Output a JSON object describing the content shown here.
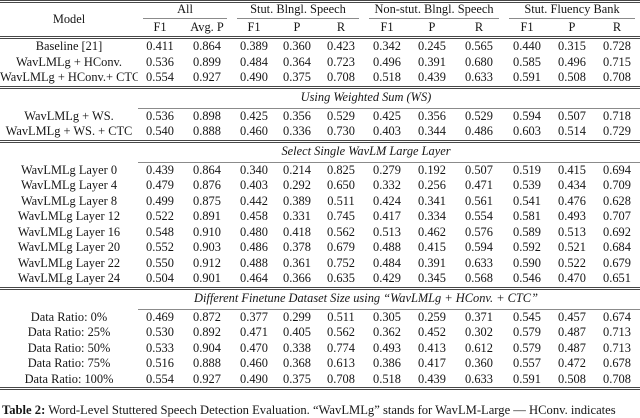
{
  "table": {
    "header": {
      "model": "Model",
      "groups": [
        {
          "label": "All",
          "cols": [
            "F1",
            "Avg. P"
          ]
        },
        {
          "label": "Stut. Blngl. Speech",
          "cols": [
            "F1",
            "P",
            "R"
          ]
        },
        {
          "label": "Non-stut. Blngl. Speech",
          "cols": [
            "F1",
            "P",
            "R"
          ]
        },
        {
          "label": "Stut. Fluency Bank",
          "cols": [
            "F1",
            "P",
            "R"
          ]
        }
      ]
    },
    "sections": [
      {
        "title": "",
        "rows": [
          {
            "model": "Baseline [21]",
            "values": [
              "0.411",
              "0.864",
              "0.389",
              "0.360",
              "0.423",
              "0.342",
              "0.245",
              "0.565",
              "0.440",
              "0.315",
              "0.728"
            ],
            "bold": []
          },
          {
            "model": "WavLMLg + HConv.",
            "values": [
              "0.536",
              "0.899",
              "0.484",
              "0.364",
              "0.723",
              "0.496",
              "0.391",
              "0.680",
              "0.585",
              "0.496",
              "0.715"
            ],
            "bold": []
          },
          {
            "model": "WavLMLg + HConv.+ CTC",
            "values": [
              "0.554",
              "0.927",
              "0.490",
              "0.375",
              "0.708",
              "0.518",
              "0.439",
              "0.633",
              "0.591",
              "0.508",
              "0.708"
            ],
            "bold": [
              0,
              1,
              2,
              5
            ]
          }
        ]
      },
      {
        "title": "Using Weighted Sum (WS)",
        "rows": [
          {
            "model": "WavLMLg + WS.",
            "values": [
              "0.536",
              "0.898",
              "0.425",
              "0.356",
              "0.529",
              "0.425",
              "0.356",
              "0.529",
              "0.594",
              "0.507",
              "0.718"
            ],
            "bold": []
          },
          {
            "model": "WavLMLg + WS. + CTC",
            "values": [
              "0.540",
              "0.888",
              "0.460",
              "0.336",
              "0.730",
              "0.403",
              "0.344",
              "0.486",
              "0.603",
              "0.514",
              "0.729"
            ],
            "bold": [
              8
            ]
          }
        ]
      },
      {
        "title": "Select Single WavLM Large Layer",
        "rows": [
          {
            "model": "WavLMLg Layer 0",
            "values": [
              "0.439",
              "0.864",
              "0.340",
              "0.214",
              "0.825",
              "0.279",
              "0.192",
              "0.507",
              "0.519",
              "0.415",
              "0.694"
            ],
            "bold": []
          },
          {
            "model": "WavLMLg Layer 4",
            "values": [
              "0.479",
              "0.876",
              "0.403",
              "0.292",
              "0.650",
              "0.332",
              "0.256",
              "0.471",
              "0.539",
              "0.434",
              "0.709"
            ],
            "bold": []
          },
          {
            "model": "WavLMLg Layer 8",
            "values": [
              "0.499",
              "0.875",
              "0.442",
              "0.389",
              "0.511",
              "0.424",
              "0.341",
              "0.561",
              "0.541",
              "0.476",
              "0.628"
            ],
            "bold": []
          },
          {
            "model": "WavLMLg Layer 12",
            "values": [
              "0.522",
              "0.891",
              "0.458",
              "0.331",
              "0.745",
              "0.417",
              "0.334",
              "0.554",
              "0.581",
              "0.493",
              "0.707"
            ],
            "bold": []
          },
          {
            "model": "WavLMLg Layer 16",
            "values": [
              "0.548",
              "0.910",
              "0.480",
              "0.418",
              "0.562",
              "0.513",
              "0.462",
              "0.576",
              "0.589",
              "0.513",
              "0.692"
            ],
            "bold": []
          },
          {
            "model": "WavLMLg Layer 20",
            "values": [
              "0.552",
              "0.903",
              "0.486",
              "0.378",
              "0.679",
              "0.488",
              "0.415",
              "0.594",
              "0.592",
              "0.521",
              "0.684"
            ],
            "bold": []
          },
          {
            "model": "WavLMLg Layer 22",
            "values": [
              "0.550",
              "0.912",
              "0.488",
              "0.361",
              "0.752",
              "0.484",
              "0.391",
              "0.633",
              "0.590",
              "0.522",
              "0.679"
            ],
            "bold": []
          },
          {
            "model": "WavLMLg Layer 24",
            "values": [
              "0.504",
              "0.901",
              "0.464",
              "0.366",
              "0.635",
              "0.429",
              "0.345",
              "0.568",
              "0.546",
              "0.470",
              "0.651"
            ],
            "bold": []
          }
        ]
      },
      {
        "title": "Different Finetune Dataset Size using “WavLMLg + HConv. + CTC”",
        "rows": [
          {
            "model": "Data Ratio: 0%",
            "values": [
              "0.469",
              "0.872",
              "0.377",
              "0.299",
              "0.511",
              "0.305",
              "0.259",
              "0.371",
              "0.545",
              "0.457",
              "0.674"
            ],
            "bold": []
          },
          {
            "model": "Data Ratio: 25%",
            "values": [
              "0.530",
              "0.892",
              "0.471",
              "0.405",
              "0.562",
              "0.362",
              "0.452",
              "0.302",
              "0.579",
              "0.487",
              "0.713"
            ],
            "bold": []
          },
          {
            "model": "Data Ratio: 50%",
            "values": [
              "0.533",
              "0.904",
              "0.470",
              "0.338",
              "0.774",
              "0.493",
              "0.413",
              "0.612",
              "0.579",
              "0.487",
              "0.713"
            ],
            "bold": []
          },
          {
            "model": "Data Ratio: 75%",
            "values": [
              "0.516",
              "0.888",
              "0.460",
              "0.368",
              "0.613",
              "0.386",
              "0.417",
              "0.360",
              "0.557",
              "0.472",
              "0.678"
            ],
            "bold": []
          },
          {
            "model": "Data Ratio: 100%",
            "values": [
              "0.554",
              "0.927",
              "0.490",
              "0.375",
              "0.708",
              "0.518",
              "0.439",
              "0.633",
              "0.591",
              "0.508",
              "0.708"
            ],
            "bold": []
          }
        ]
      }
    ],
    "caption": {
      "label": "Table 2:",
      "text": "Word-Level Stuttered Speech Detection Evaluation. “WavLMLg” stands for WavLM-Large — HConv. indicates"
    }
  }
}
